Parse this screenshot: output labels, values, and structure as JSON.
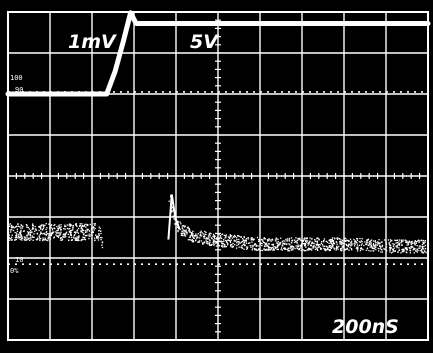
{
  "chart_data": {
    "type": "line",
    "title": "",
    "graticule": {
      "columns": 10,
      "rows": 8,
      "minor_divisions": 5
    },
    "scale_labels": {
      "ch1_volts_per_div": "5V",
      "ch2_volts_per_div": "1mV",
      "time_per_div": "200nS"
    },
    "graticule_marks": [
      "100",
      "90",
      "10",
      "0%"
    ],
    "xlim": [
      0,
      10
    ],
    "ylim": [
      0,
      8
    ],
    "series": [
      {
        "name": "",
        "style": "solid-bold",
        "x": [
          0,
          0.0,
          2.35,
          2.55,
          2.75,
          2.92,
          3.05,
          3.3,
          10
        ],
        "y": [
          0,
          6.0,
          6.0,
          6.55,
          7.3,
          7.98,
          7.72,
          7.72,
          7.72
        ]
      },
      {
        "name": "",
        "style": "noisy-dotted",
        "x": [
          0,
          2.2,
          2.22,
          3.7,
          3.85,
          3.92,
          4.05,
          4.4,
          5.0,
          6.0,
          7.0,
          8.0,
          9.0,
          10
        ],
        "y": [
          2.65,
          2.65,
          2.45,
          2.45,
          3.5,
          3.05,
          2.75,
          2.55,
          2.45,
          2.35,
          2.35,
          2.35,
          2.3,
          2.3
        ],
        "noise": 0.16
      }
    ],
    "grid": true,
    "colors": {
      "background": "#000000",
      "trace": "#ffffff",
      "grid": "#ffffff"
    }
  }
}
